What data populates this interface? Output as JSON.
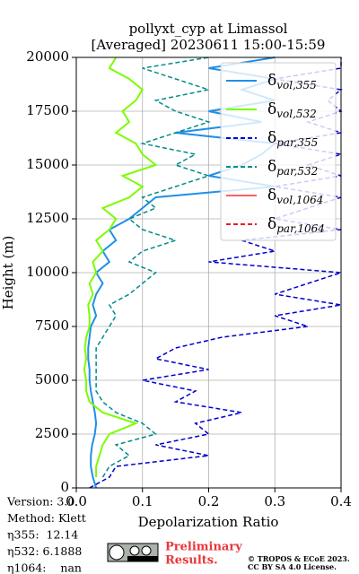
{
  "chart_data": {
    "type": "line",
    "title": "pollyxt_cyp at Limassol",
    "subtitle": "[Averaged] 20230611 15:00-15:59",
    "xlabel": "Depolarization Ratio",
    "ylabel": "Height (m)",
    "xlim": [
      0,
      0.4
    ],
    "ylim": [
      0,
      20000
    ],
    "xticks": [
      {
        "value": 0,
        "label": "0.0"
      },
      0.1,
      0.2,
      0.3,
      0.4
    ],
    "yticks": [
      0,
      2500,
      5000,
      7500,
      10000,
      12500,
      15000,
      17500,
      20000
    ],
    "grid": true,
    "legend": "upper right",
    "y": [
      0,
      500,
      1000,
      1500,
      2000,
      2500,
      3000,
      3500,
      4000,
      4500,
      5000,
      5500,
      6000,
      6500,
      7000,
      7500,
      8000,
      8500,
      9000,
      9500,
      10000,
      10500,
      11000,
      11500,
      12000,
      12500,
      13000,
      13500,
      14000,
      14500,
      15000,
      15500,
      16000,
      16500,
      17000,
      17500,
      18000,
      18500,
      19000,
      19500,
      20000
    ],
    "series": [
      {
        "name": "δvol,355",
        "color": "#1f8fe8",
        "dash": false,
        "values": [
          0.03,
          0.025,
          0.022,
          0.022,
          0.024,
          0.028,
          0.03,
          0.028,
          0.025,
          0.022,
          0.02,
          0.02,
          0.018,
          0.018,
          0.02,
          0.022,
          0.03,
          0.025,
          0.03,
          0.04,
          0.03,
          0.05,
          0.04,
          0.06,
          0.05,
          0.08,
          0.1,
          0.12,
          0.3,
          0.2,
          0.25,
          0.28,
          0.3,
          0.15,
          0.28,
          0.2,
          0.3,
          0.25,
          0.3,
          0.2,
          0.3
        ]
      },
      {
        "name": "δvol,532",
        "color": "#7cfc00",
        "dash": false,
        "values": [
          null,
          0.03,
          0.03,
          0.035,
          0.04,
          0.05,
          0.09,
          0.04,
          0.02,
          0.015,
          0.015,
          0.012,
          0.015,
          0.013,
          0.015,
          0.02,
          0.02,
          0.018,
          0.025,
          0.02,
          0.03,
          0.025,
          0.04,
          0.03,
          0.05,
          0.06,
          0.04,
          0.08,
          0.1,
          0.07,
          0.12,
          0.1,
          0.09,
          0.06,
          0.08,
          0.07,
          0.09,
          0.1,
          0.08,
          0.05,
          0.06
        ]
      },
      {
        "name": "δpar,355",
        "color": "#0000cd",
        "dash": true,
        "values": [
          0.02,
          0.05,
          0.06,
          0.2,
          0.12,
          0.2,
          0.18,
          0.25,
          0.15,
          0.18,
          0.1,
          0.2,
          0.12,
          0.15,
          0.22,
          0.35,
          0.3,
          0.4,
          0.3,
          0.35,
          0.4,
          0.2,
          0.3,
          0.25,
          0.4,
          0.3,
          0.35,
          0.4,
          0.3,
          0.4,
          0.35,
          0.4,
          0.3,
          0.4,
          0.35,
          0.4,
          0.38,
          0.4,
          0.3,
          0.4,
          0.4
        ]
      },
      {
        "name": "δpar,532",
        "color": "#008b8b",
        "dash": true,
        "values": [
          null,
          0.04,
          0.05,
          0.08,
          0.06,
          0.12,
          0.1,
          0.06,
          0.04,
          0.03,
          0.03,
          0.03,
          0.03,
          0.03,
          0.04,
          0.05,
          0.06,
          0.05,
          0.08,
          0.1,
          0.12,
          0.08,
          0.1,
          0.15,
          0.1,
          0.08,
          0.12,
          0.1,
          0.15,
          0.2,
          0.15,
          0.18,
          0.1,
          0.15,
          0.2,
          0.15,
          0.12,
          0.2,
          0.15,
          0.1,
          0.2
        ]
      },
      {
        "name": "δvol,1064",
        "color": "#ff6060",
        "dash": false,
        "values": [
          null,
          null,
          null,
          null,
          null,
          null,
          null,
          null,
          null,
          null,
          null,
          null,
          null,
          null,
          null,
          null,
          null,
          null,
          null,
          null,
          null,
          null,
          null,
          null,
          null,
          null,
          null,
          null,
          null,
          null,
          null,
          null,
          null,
          null,
          null,
          null,
          null,
          null,
          null,
          null,
          null
        ]
      },
      {
        "name": "δpar,1064",
        "color": "#e8202a",
        "dash": true,
        "values": [
          null,
          null,
          null,
          null,
          null,
          null,
          null,
          null,
          null,
          null,
          null,
          null,
          null,
          null,
          null,
          null,
          null,
          null,
          null,
          null,
          null,
          null,
          null,
          null,
          null,
          null,
          null,
          null,
          null,
          null,
          null,
          null,
          null,
          null,
          null,
          null,
          null,
          null,
          null,
          null,
          null
        ]
      }
    ],
    "annotations": [
      "Version: 3.0",
      "Method: Klett",
      "η355:  12.14",
      "η532: 6.1888",
      "η1064:    nan"
    ],
    "logo_text": [
      "Preliminary",
      "Results."
    ],
    "license": [
      "© TROPOS & ECoE 2023.",
      "CC BY SA 4.0 License."
    ]
  }
}
